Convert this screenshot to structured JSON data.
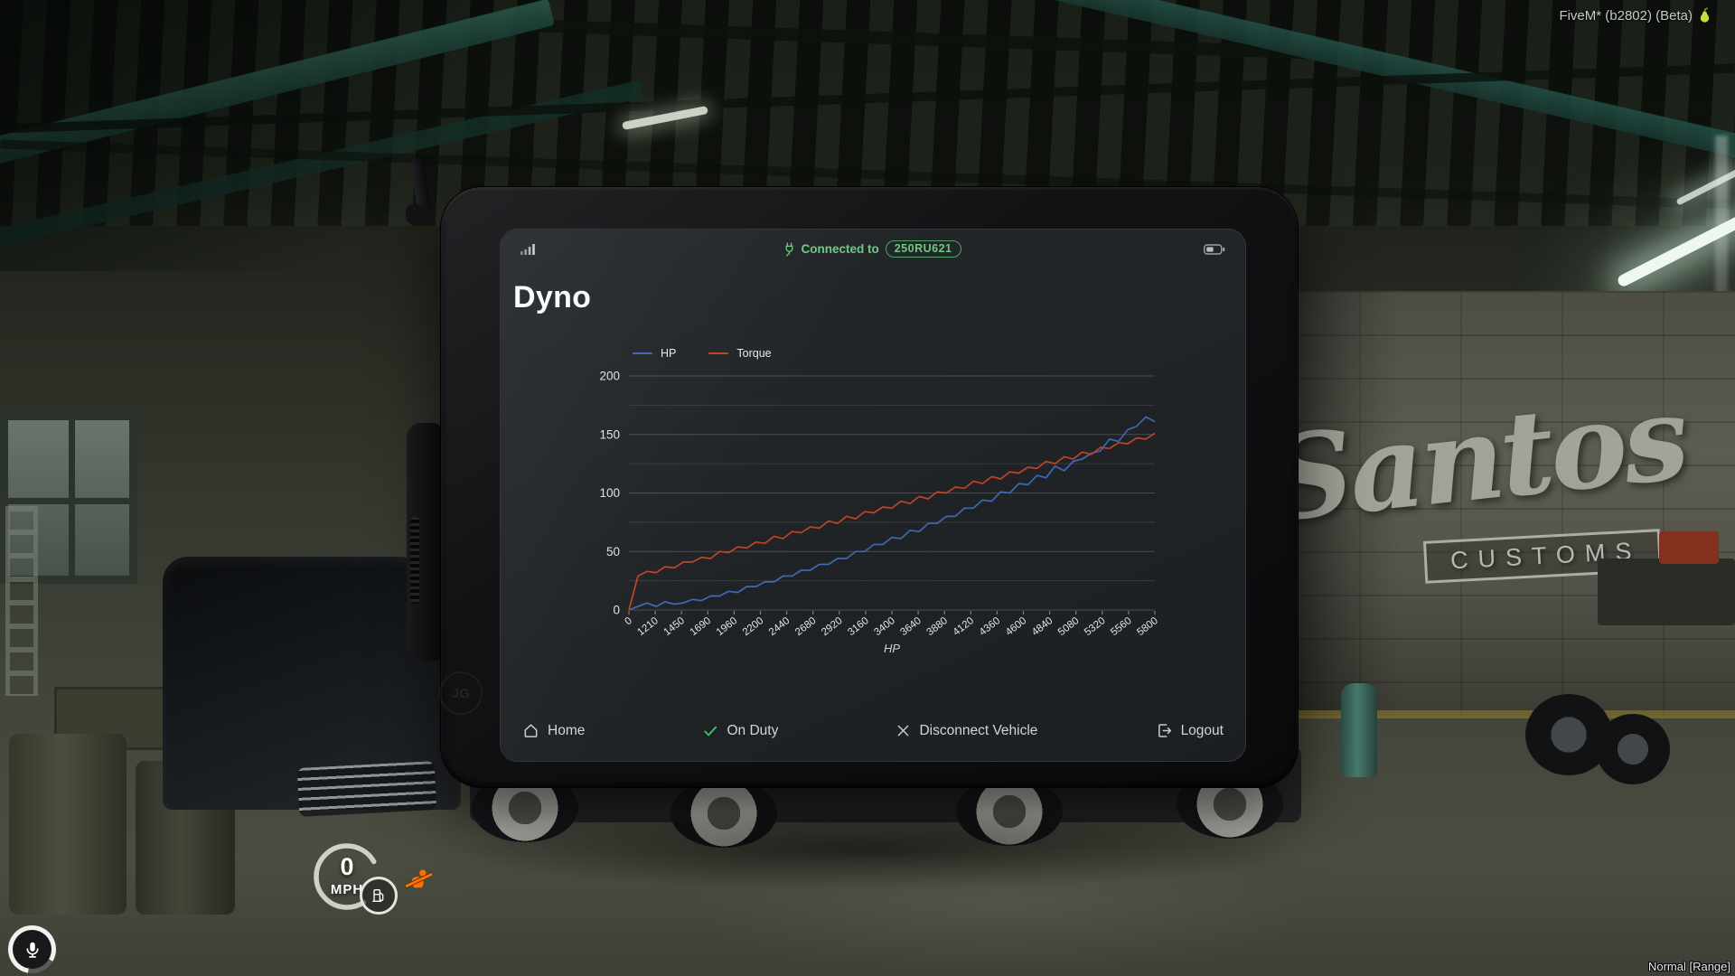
{
  "hud": {
    "fivem_label": "FiveM* (b2802) (Beta)",
    "range_label": "Normal [Range]",
    "speedometer": {
      "speed": "0",
      "unit": "MPH"
    }
  },
  "scene": {
    "wall_script": "Santos",
    "wall_box": "CUSTOMS",
    "bezel_logo": "JG"
  },
  "tablet": {
    "title": "Dyno",
    "status_bar": {
      "connected_prefix": "Connected to",
      "plate": "250RU621",
      "accent_green": "#6ccb82"
    },
    "nav": [
      {
        "label": "Home"
      },
      {
        "label": "On Duty"
      },
      {
        "label": "Disconnect Vehicle"
      },
      {
        "label": "Logout"
      }
    ]
  },
  "chart_data": {
    "type": "line",
    "title": "",
    "xlabel": "HP",
    "ylabel": "",
    "ylim": [
      0,
      200
    ],
    "y_ticks": [
      0,
      50,
      100,
      150,
      200
    ],
    "y_minor_step": 25,
    "grid": "horizontal",
    "legend_position": "top-left",
    "x_tick_labels": [
      "0",
      "1210",
      "1450",
      "1690",
      "1960",
      "2200",
      "2440",
      "2680",
      "2920",
      "3160",
      "3400",
      "3640",
      "3880",
      "4120",
      "4360",
      "4600",
      "4840",
      "5080",
      "5320",
      "5560",
      "5800"
    ],
    "series": [
      {
        "name": "HP",
        "color": "#3f68b3",
        "values": [
          0,
          3,
          6,
          3,
          7,
          5,
          6,
          9,
          8,
          12,
          12,
          16,
          15,
          20,
          20,
          24,
          24,
          29,
          29,
          34,
          34,
          39,
          39,
          44,
          44,
          50,
          50,
          56,
          56,
          62,
          61,
          68,
          67,
          74,
          74,
          80,
          80,
          87,
          87,
          94,
          93,
          101,
          100,
          108,
          107,
          115,
          113,
          123,
          119,
          127,
          129,
          134,
          136,
          146,
          144,
          154,
          157,
          165,
          161
        ]
      },
      {
        "name": "Torque",
        "color": "#c04229",
        "values": [
          0,
          29,
          33,
          32,
          37,
          36,
          41,
          41,
          45,
          44,
          50,
          49,
          54,
          53,
          58,
          57,
          63,
          61,
          67,
          66,
          71,
          70,
          76,
          74,
          80,
          78,
          84,
          83,
          88,
          87,
          93,
          91,
          97,
          95,
          101,
          100,
          105,
          104,
          110,
          108,
          114,
          112,
          118,
          117,
          122,
          121,
          127,
          125,
          131,
          129,
          135,
          133,
          139,
          138,
          143,
          142,
          147,
          146,
          151
        ]
      }
    ]
  }
}
